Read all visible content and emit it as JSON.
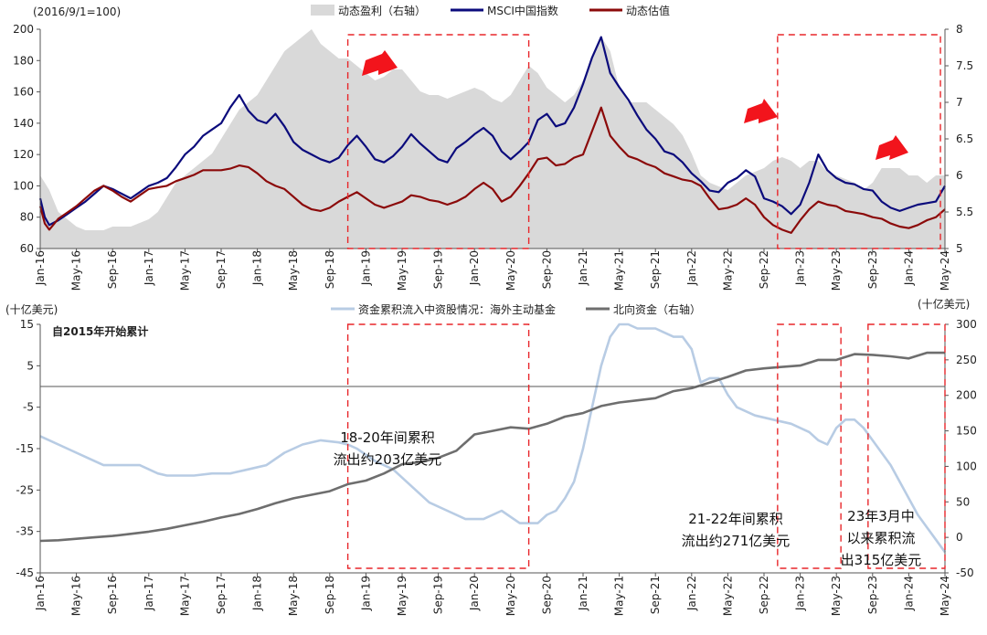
{
  "colors": {
    "profit_fill": "#d9d9d9",
    "msci": "#0b0b7c",
    "valuation": "#8b0a0a",
    "active_funds": "#b8cce4",
    "northbound": "#6e6e6e",
    "box": "#e8262a",
    "arrow": "#f2141c"
  },
  "chart_data": [
    {
      "type": "line",
      "unit_left": "(2016/9/1=100)",
      "legend": [
        "动态盈利（右轴）",
        "MSCI中国指数",
        "动态估值"
      ],
      "ylim_left": [
        60,
        200
      ],
      "yticks_left": [
        200,
        180,
        160,
        140,
        120,
        100,
        80,
        60
      ],
      "ylim_right": [
        5,
        8
      ],
      "yticks_right": [
        8,
        7.5,
        7,
        6.5,
        6,
        5.5,
        5
      ],
      "x_tick_labels": [
        "Jan-16",
        "May-16",
        "Sep-16",
        "Jan-17",
        "May-17",
        "Sep-17",
        "Jan-18",
        "May-18",
        "Sep-18",
        "Jan-19",
        "May-19",
        "Sep-19",
        "Jan-20",
        "May-20",
        "Sep-20",
        "Jan-21",
        "May-21",
        "Sep-21",
        "Jan-22",
        "May-22",
        "Sep-22",
        "Jan-23",
        "May-23",
        "Sep-23",
        "Jan-24",
        "May-24"
      ],
      "series": [
        {
          "name": "动态盈利（右轴）",
          "axis": "right",
          "type": "area",
          "x": [
            0,
            0.5,
            1,
            2,
            3,
            4,
            5,
            6,
            7,
            8,
            9,
            10,
            11,
            12,
            13,
            14,
            15,
            16,
            17,
            18,
            19,
            20,
            21,
            22,
            23,
            24,
            25,
            26,
            27,
            28,
            29,
            30,
            31,
            32,
            33,
            34,
            35,
            36,
            37,
            38,
            39,
            40,
            41,
            42,
            43,
            44,
            45,
            46,
            47,
            48,
            49,
            50,
            51,
            52,
            53,
            54,
            55,
            56,
            57,
            58,
            59,
            60,
            61,
            62,
            63,
            64,
            65,
            66,
            67,
            68,
            69,
            70,
            71,
            72,
            73,
            74,
            75,
            76,
            77,
            78,
            79,
            80,
            81,
            82,
            83,
            84,
            85,
            86,
            87,
            88,
            89,
            90,
            91,
            92,
            93,
            94,
            95,
            96,
            97,
            98,
            99,
            100
          ],
          "y": [
            6,
            5.9,
            5.8,
            5.5,
            5.4,
            5.3,
            5.25,
            5.25,
            5.25,
            5.3,
            5.3,
            5.3,
            5.35,
            5.4,
            5.5,
            5.7,
            5.9,
            6,
            6.1,
            6.2,
            6.3,
            6.5,
            6.7,
            6.9,
            7,
            7.1,
            7.3,
            7.5,
            7.7,
            7.8,
            7.9,
            8.0,
            7.8,
            7.7,
            7.6,
            7.6,
            7.5,
            7.4,
            7.3,
            7.35,
            7.45,
            7.45,
            7.3,
            7.15,
            7.1,
            7.1,
            7.05,
            7.1,
            7.15,
            7.2,
            7.15,
            7.05,
            7.0,
            7.1,
            7.3,
            7.5,
            7.4,
            7.2,
            7.1,
            7.0,
            7.1,
            7.3,
            7.6,
            7.9,
            7.7,
            7.2,
            7.0,
            7.0,
            7.0,
            6.9,
            6.8,
            6.7,
            6.55,
            6.3,
            6.0,
            5.9,
            5.85,
            5.8,
            5.9,
            6.0,
            6.05,
            6.1,
            6.2,
            6.25,
            6.2,
            6.1,
            6.2,
            6.2,
            6.05,
            6.0,
            5.95,
            5.9,
            5.8,
            5.9,
            6.1,
            6.1,
            6.1,
            6.0,
            6.0,
            5.9,
            6.0,
            6.0
          ]
        },
        {
          "name": "MSCI中国指数",
          "axis": "left",
          "type": "line",
          "x": [
            0,
            0.5,
            1,
            2,
            3,
            4,
            5,
            6,
            7,
            8,
            9,
            10,
            11,
            12,
            13,
            14,
            15,
            16,
            17,
            18,
            19,
            20,
            21,
            22,
            23,
            24,
            25,
            26,
            27,
            28,
            29,
            30,
            31,
            32,
            33,
            34,
            35,
            36,
            37,
            38,
            39,
            40,
            41,
            42,
            43,
            44,
            45,
            46,
            47,
            48,
            49,
            50,
            51,
            52,
            53,
            54,
            55,
            56,
            57,
            58,
            59,
            60,
            61,
            62,
            63,
            64,
            65,
            66,
            67,
            68,
            69,
            70,
            71,
            72,
            73,
            74,
            75,
            76,
            77,
            78,
            79,
            80,
            81,
            82,
            83,
            84,
            85,
            86,
            87,
            88,
            89,
            90,
            91,
            92,
            93,
            94,
            95,
            96,
            97,
            98,
            99,
            100
          ],
          "y": [
            92,
            80,
            75,
            78,
            82,
            86,
            90,
            95,
            100,
            98,
            95,
            92,
            96,
            100,
            102,
            105,
            112,
            120,
            125,
            132,
            136,
            140,
            150,
            158,
            148,
            142,
            140,
            146,
            138,
            128,
            123,
            120,
            117,
            115,
            118,
            126,
            132,
            125,
            117,
            115,
            119,
            125,
            133,
            127,
            122,
            117,
            115,
            124,
            128,
            133,
            137,
            132,
            122,
            117,
            122,
            128,
            142,
            146,
            138,
            140,
            150,
            165,
            182,
            195,
            172,
            163,
            155,
            145,
            136,
            130,
            122,
            120,
            115,
            108,
            103,
            97,
            96,
            102,
            105,
            110,
            106,
            92,
            90,
            87,
            82,
            88,
            102,
            120,
            110,
            105,
            102,
            101,
            98,
            97,
            90,
            86,
            84,
            86,
            88,
            89,
            90,
            100
          ]
        },
        {
          "name": "动态估值",
          "axis": "left",
          "type": "line",
          "x": [
            0,
            0.5,
            1,
            2,
            3,
            4,
            5,
            6,
            7,
            8,
            9,
            10,
            11,
            12,
            13,
            14,
            15,
            16,
            17,
            18,
            19,
            20,
            21,
            22,
            23,
            24,
            25,
            26,
            27,
            28,
            29,
            30,
            31,
            32,
            33,
            34,
            35,
            36,
            37,
            38,
            39,
            40,
            41,
            42,
            43,
            44,
            45,
            46,
            47,
            48,
            49,
            50,
            51,
            52,
            53,
            54,
            55,
            56,
            57,
            58,
            59,
            60,
            61,
            62,
            63,
            64,
            65,
            66,
            67,
            68,
            69,
            70,
            71,
            72,
            73,
            74,
            75,
            76,
            77,
            78,
            79,
            80,
            81,
            82,
            83,
            84,
            85,
            86,
            87,
            88,
            89,
            90,
            91,
            92,
            93,
            94,
            95,
            96,
            97,
            98,
            99,
            100
          ],
          "y": [
            87,
            76,
            72,
            79,
            83,
            87,
            92,
            97,
            100,
            97,
            93,
            90,
            94,
            98,
            99,
            100,
            103,
            105,
            107,
            110,
            110,
            110,
            111,
            113,
            112,
            108,
            103,
            100,
            98,
            93,
            88,
            85,
            84,
            86,
            90,
            93,
            96,
            92,
            88,
            86,
            88,
            90,
            94,
            93,
            91,
            90,
            88,
            90,
            93,
            98,
            102,
            98,
            90,
            93,
            100,
            108,
            117,
            118,
            113,
            114,
            118,
            120,
            135,
            150,
            132,
            125,
            119,
            117,
            114,
            112,
            108,
            106,
            104,
            103,
            100,
            92,
            85,
            86,
            88,
            92,
            88,
            80,
            75,
            72,
            70,
            78,
            85,
            90,
            88,
            87,
            84,
            83,
            82,
            80,
            79,
            76,
            74,
            73,
            75,
            78,
            80,
            85
          ]
        }
      ],
      "highlight_boxes": [
        {
          "x": [
            34,
            54
          ],
          "unit": "month-index"
        },
        {
          "x": [
            81.5,
            99.5
          ],
          "unit": "month-index"
        }
      ]
    },
    {
      "type": "line",
      "unit_left": "(十亿美元)",
      "unit_right": "(十亿美元)",
      "subtitle": "自2015年开始累计",
      "legend": [
        "资金累积流入中资股情况：海外主动基金",
        "北向资金（右轴）"
      ],
      "ylim_left": [
        -45,
        15
      ],
      "yticks_left": [
        15,
        5,
        -5,
        -15,
        -25,
        -35,
        -45
      ],
      "ylim_right": [
        -50,
        300
      ],
      "yticks_right": [
        300,
        250,
        200,
        150,
        100,
        50,
        0,
        -50
      ],
      "x_tick_labels": [
        "Jan-16",
        "May-16",
        "Sep-16",
        "Jan-17",
        "May-17",
        "Sep-17",
        "Jan-18",
        "May-18",
        "Sep-18",
        "Jan-19",
        "May-19",
        "Sep-19",
        "Jan-20",
        "May-20",
        "Sep-20",
        "Jan-21",
        "May-21",
        "Sep-21",
        "Jan-22",
        "May-22",
        "Sep-22",
        "Jan-23",
        "May-23",
        "Sep-23",
        "Jan-24",
        "May-24"
      ],
      "series": [
        {
          "name": "资金累积流入中资股情况：海外主动基金",
          "axis": "left",
          "type": "line",
          "x": [
            0,
            1,
            3,
            5,
            7,
            9,
            11,
            13,
            14,
            15,
            17,
            19,
            21,
            23,
            25,
            27,
            29,
            31,
            33,
            34,
            35,
            37,
            39,
            41,
            43,
            45,
            47,
            49,
            51,
            53,
            55,
            56,
            57,
            58,
            59,
            60,
            61,
            62,
            63,
            64,
            65,
            66,
            67,
            68,
            69,
            70,
            71,
            72,
            73,
            74,
            75,
            76,
            77,
            79,
            81,
            83,
            85,
            86,
            87,
            88,
            89,
            90,
            91,
            92,
            93,
            94,
            95,
            96,
            97,
            98,
            99,
            100
          ],
          "y": [
            -12,
            -13,
            -15,
            -17,
            -19,
            -19,
            -19,
            -21,
            -21.5,
            -21.5,
            -21.5,
            -21,
            -21,
            -20,
            -19,
            -16,
            -14,
            -13,
            -13.5,
            -14,
            -15,
            -18,
            -20,
            -24,
            -28,
            -30,
            -32,
            -32,
            -30,
            -33,
            -33,
            -31,
            -30,
            -27,
            -23,
            -15,
            -5,
            5,
            12,
            15,
            15,
            14,
            14,
            14,
            13,
            12,
            12,
            9,
            1,
            2,
            2,
            -2,
            -5,
            -7,
            -8,
            -9,
            -11,
            -13,
            -14,
            -10,
            -8,
            -8,
            -10,
            -13,
            -16,
            -19,
            -23,
            -27,
            -31,
            -34,
            -37,
            -40
          ]
        },
        {
          "name": "北向资金（右轴）",
          "axis": "right",
          "type": "line",
          "x": [
            0,
            2,
            4,
            6,
            8,
            10,
            12,
            14,
            16,
            18,
            20,
            22,
            24,
            26,
            28,
            30,
            32,
            34,
            36,
            38,
            40,
            42,
            44,
            46,
            48,
            50,
            52,
            54,
            56,
            58,
            60,
            62,
            64,
            66,
            68,
            70,
            72,
            74,
            76,
            78,
            80,
            82,
            84,
            86,
            88,
            90,
            92,
            94,
            96,
            98,
            100
          ],
          "y": [
            -5,
            -4,
            -2,
            0,
            2,
            5,
            8,
            12,
            17,
            22,
            28,
            33,
            40,
            48,
            55,
            60,
            65,
            75,
            80,
            90,
            103,
            106,
            112,
            122,
            145,
            150,
            155,
            153,
            160,
            170,
            175,
            185,
            190,
            193,
            196,
            206,
            210,
            218,
            226,
            235,
            238,
            240,
            242,
            250,
            250,
            258,
            257,
            255,
            252,
            260,
            260
          ]
        }
      ],
      "highlight_boxes": [
        {
          "x": [
            34,
            54
          ],
          "unit": "month-index"
        },
        {
          "x": [
            81.5,
            88.5
          ],
          "unit": "month-index"
        },
        {
          "x": [
            91.5,
            100
          ],
          "unit": "month-index"
        }
      ],
      "annotations": [
        [
          "18-20年间累积",
          "流出约203亿美元"
        ],
        [
          "21-22年间累积",
          "流出约271亿美元"
        ],
        [
          "23年3月中",
          "以来累积流",
          "出315亿美元"
        ]
      ]
    }
  ]
}
